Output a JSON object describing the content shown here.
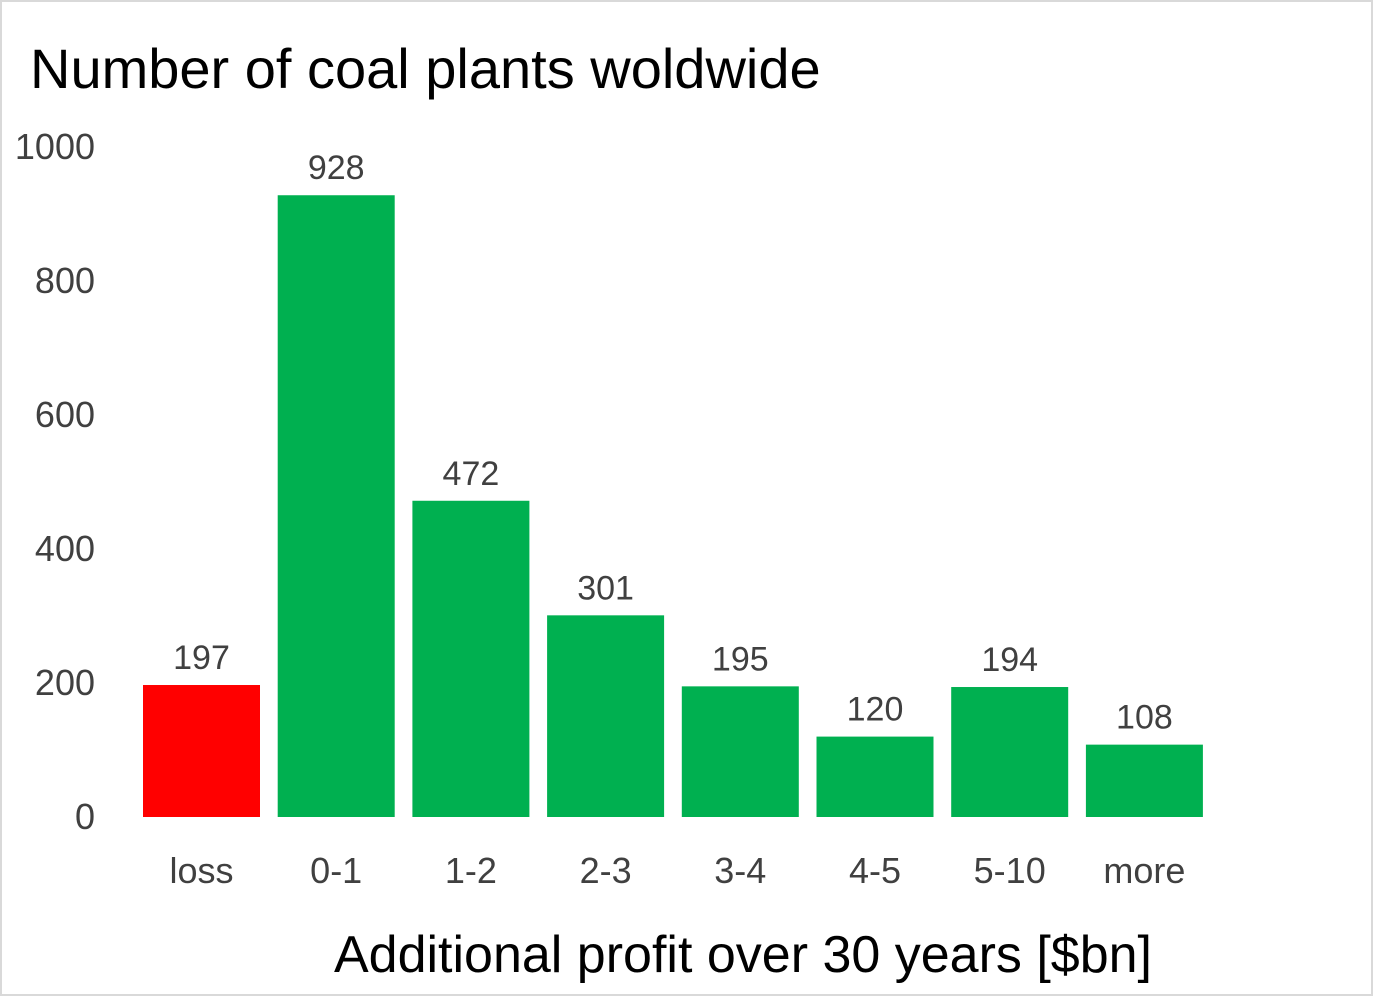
{
  "chart_data": {
    "type": "bar",
    "title": "Number of coal plants woldwide",
    "xlabel": "Additional profit over 30 years [$bn]",
    "ylabel": "",
    "categories": [
      "loss",
      "0-1",
      "1-2",
      "2-3",
      "3-4",
      "4-5",
      "5-10",
      "more"
    ],
    "values": [
      197,
      928,
      472,
      301,
      195,
      120,
      194,
      108
    ],
    "bar_colors": [
      "#ff0000",
      "#00b050",
      "#00b050",
      "#00b050",
      "#00b050",
      "#00b050",
      "#00b050",
      "#00b050"
    ],
    "ylim": [
      0,
      1000
    ],
    "yticks": [
      0,
      200,
      400,
      600,
      800,
      1000
    ],
    "grid": false,
    "legend": "none",
    "data_labels": true
  }
}
